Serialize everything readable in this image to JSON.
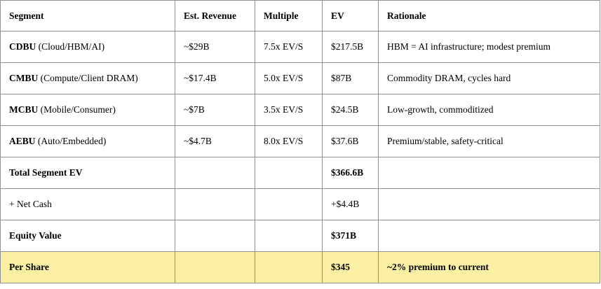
{
  "headers": [
    "Segment",
    "Est. Revenue",
    "Multiple",
    "EV",
    "Rationale"
  ],
  "rows": [
    {
      "segment_bold": "CDBU",
      "segment_rest": " (Cloud/HBM/AI)",
      "revenue": "~$29B",
      "multiple": "7.5x EV/S",
      "ev": "$217.5B",
      "rationale": "HBM = AI infrastructure; modest premium"
    },
    {
      "segment_bold": "CMBU",
      "segment_rest": " (Compute/Client DRAM)",
      "revenue": "~$17.4B",
      "multiple": "5.0x EV/S",
      "ev": "$87B",
      "rationale": "Commodity DRAM, cycles hard"
    },
    {
      "segment_bold": "MCBU",
      "segment_rest": " (Mobile/Consumer)",
      "revenue": "~$7B",
      "multiple": "3.5x EV/S",
      "ev": "$24.5B",
      "rationale": "Low-growth, commoditized"
    },
    {
      "segment_bold": "AEBU",
      "segment_rest": " (Auto/Embedded)",
      "revenue": "~$4.7B",
      "multiple": "8.0x EV/S",
      "ev": "$37.6B",
      "rationale": "Premium/stable, safety-critical"
    },
    {
      "segment_bold": "Total Segment EV",
      "segment_rest": "",
      "revenue": "",
      "multiple": "",
      "ev": "$366.6B",
      "rationale": ""
    },
    {
      "segment_bold": "",
      "segment_rest": "+ Net Cash",
      "revenue": "",
      "multiple": "",
      "ev": "+$4.4B",
      "rationale": ""
    },
    {
      "segment_bold": "Equity Value",
      "segment_rest": "",
      "revenue": "",
      "multiple": "",
      "ev": "$371B",
      "rationale": ""
    }
  ],
  "total_row": {
    "segment": "Per Share",
    "ev": "$345",
    "rationale": "~2% premium to current"
  },
  "colors": {
    "highlight": "#fbf0a4",
    "border": "#8f8f8f"
  }
}
